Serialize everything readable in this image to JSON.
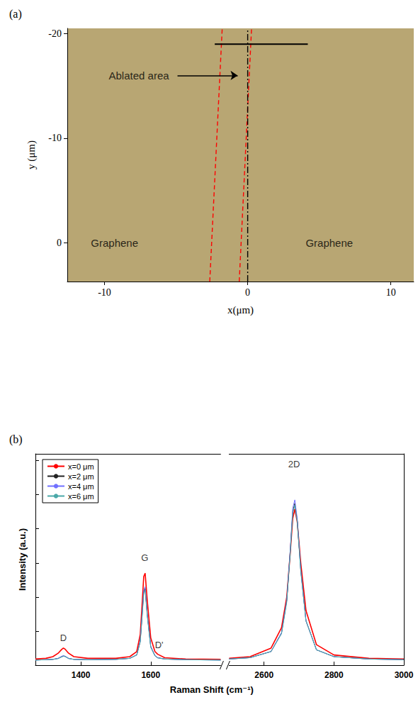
{
  "chart_data": [
    {
      "type": "line",
      "title": "(a)",
      "x_label": "x(μm)",
      "y_label": "y (μm)",
      "xlim": [
        -12.6,
        11.6
      ],
      "ylim": [
        3.7,
        -20.5
      ],
      "xticks": [
        -10,
        0,
        10
      ],
      "yticks": [
        -20,
        -10,
        0
      ],
      "grid": false,
      "color": "#b8a673",
      "series": [
        {
          "color": "#ff0000",
          "line_style": "dashed",
          "x": [
            -2.65,
            -1.78
          ],
          "values": [
            3.7,
            -20.5
          ]
        },
        {
          "color": "#ff0000",
          "line_style": "dashed",
          "x": [
            -0.59,
            0.27
          ],
          "values": [
            3.7,
            -20.5
          ]
        },
        {
          "color": "#000000",
          "line_style": "dashdot",
          "x": [
            0,
            0
          ],
          "values": [
            3.7,
            -20.5
          ]
        },
        {
          "color": "#000000",
          "line_style": "solid",
          "x": [
            -2.3,
            4.2
          ],
          "values": [
            -19.0,
            -19.0
          ]
        }
      ],
      "annotations": [
        {
          "text": "Ablated area",
          "x": -7.6,
          "y": -16.0,
          "arrow_to": [
            -0.7,
            -16.0
          ]
        },
        {
          "text": "Graphene",
          "x": -9.3,
          "y": 0
        },
        {
          "text": "Graphene",
          "x": 5.7,
          "y": 0
        }
      ]
    },
    {
      "type": "line",
      "title": "(b)",
      "x_label": "Raman Shift (cm⁻¹)",
      "y_label": "Intensity (a.u.)",
      "xlim": [
        1270,
        3000
      ],
      "x_break": [
        1800,
        2500
      ],
      "ylim": [
        0,
        6.2
      ],
      "xticks": [
        1400,
        1600,
        2600,
        2800,
        3000
      ],
      "yticks": [
        0,
        1,
        2,
        3,
        4,
        5,
        6
      ],
      "tick_labels": "x",
      "grid": false,
      "legend": "top-left",
      "x": [
        1270,
        1300,
        1320,
        1335,
        1345,
        1350,
        1355,
        1365,
        1380,
        1420,
        1500,
        1540,
        1560,
        1570,
        1576,
        1580,
        1584,
        1590,
        1600,
        1612,
        1620,
        1640,
        1700,
        1800,
        2500,
        2560,
        2620,
        2650,
        2665,
        2675,
        2682,
        2688,
        2695,
        2705,
        2720,
        2750,
        2800,
        2900,
        3000
      ],
      "series": [
        {
          "name": "x=0 μm",
          "color": "#ff0000",
          "values": [
            0.18,
            0.2,
            0.25,
            0.35,
            0.46,
            0.5,
            0.47,
            0.35,
            0.25,
            0.2,
            0.2,
            0.25,
            0.4,
            0.9,
            1.9,
            2.6,
            2.7,
            1.9,
            0.8,
            0.4,
            0.32,
            0.22,
            0.18,
            0.17,
            0.2,
            0.25,
            0.5,
            1.1,
            2.0,
            3.3,
            4.3,
            4.58,
            4.2,
            3.0,
            1.6,
            0.6,
            0.3,
            0.2,
            0.18
          ]
        },
        {
          "name": "x=2 μm",
          "color": "#222222",
          "values": [
            0.15,
            0.16,
            0.17,
            0.2,
            0.25,
            0.27,
            0.26,
            0.2,
            0.17,
            0.16,
            0.17,
            0.2,
            0.3,
            0.7,
            1.55,
            2.15,
            2.25,
            1.5,
            0.55,
            0.28,
            0.22,
            0.18,
            0.16,
            0.15,
            0.18,
            0.22,
            0.4,
            0.95,
            1.9,
            3.35,
            4.5,
            4.75,
            4.25,
            2.8,
            1.3,
            0.45,
            0.25,
            0.18,
            0.16
          ]
        },
        {
          "name": "x=4 μm",
          "color": "#7070ff",
          "values": [
            0.15,
            0.16,
            0.17,
            0.2,
            0.26,
            0.28,
            0.26,
            0.2,
            0.17,
            0.16,
            0.17,
            0.2,
            0.3,
            0.72,
            1.6,
            2.2,
            2.3,
            1.5,
            0.55,
            0.28,
            0.22,
            0.18,
            0.16,
            0.15,
            0.18,
            0.22,
            0.4,
            0.95,
            1.9,
            3.4,
            4.6,
            4.85,
            4.3,
            2.8,
            1.3,
            0.45,
            0.25,
            0.18,
            0.16
          ]
        },
        {
          "name": "x=6 μm",
          "color": "#4aa8a8",
          "values": [
            0.15,
            0.16,
            0.17,
            0.19,
            0.24,
            0.26,
            0.25,
            0.19,
            0.17,
            0.16,
            0.17,
            0.2,
            0.3,
            0.68,
            1.5,
            2.1,
            2.2,
            1.45,
            0.52,
            0.27,
            0.21,
            0.18,
            0.16,
            0.15,
            0.18,
            0.22,
            0.4,
            0.92,
            1.85,
            3.3,
            4.45,
            4.7,
            4.2,
            2.75,
            1.3,
            0.45,
            0.25,
            0.18,
            0.16
          ]
        }
      ],
      "annotations": [
        {
          "text": "D",
          "x": 1350,
          "y": 0.8
        },
        {
          "text": "G",
          "x": 1583,
          "y": 3.15
        },
        {
          "text": "D'",
          "x": 1624,
          "y": 0.6
        },
        {
          "text": "2D",
          "x": 2686,
          "y": 5.9
        }
      ]
    }
  ]
}
